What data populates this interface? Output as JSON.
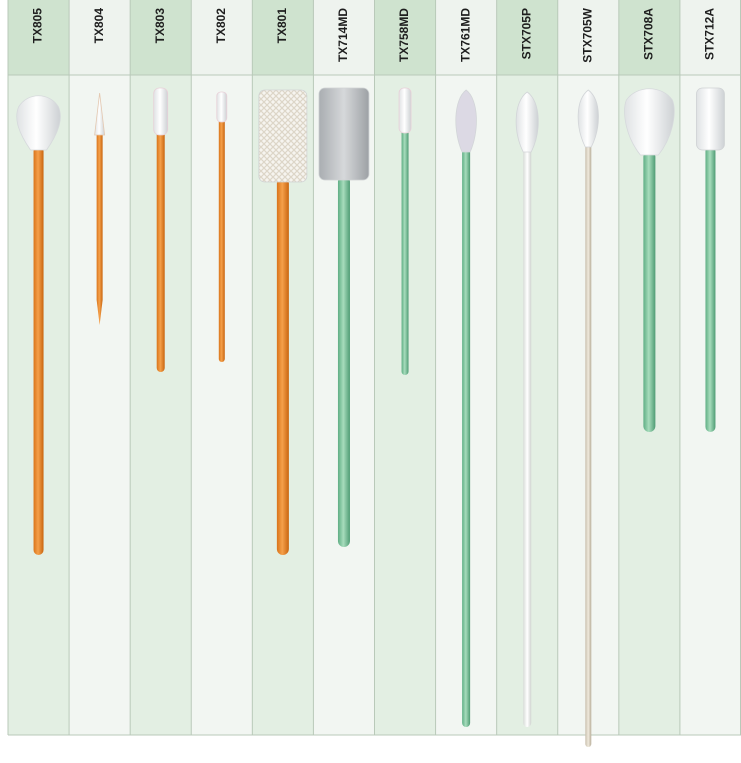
{
  "columns": [
    "TX805",
    "TX804",
    "TX803",
    "TX802",
    "TX801",
    "TX714MD",
    "TX758MD",
    "TX761MD",
    "STX705P",
    "STX705W",
    "STX708A",
    "STX712A"
  ]
}
